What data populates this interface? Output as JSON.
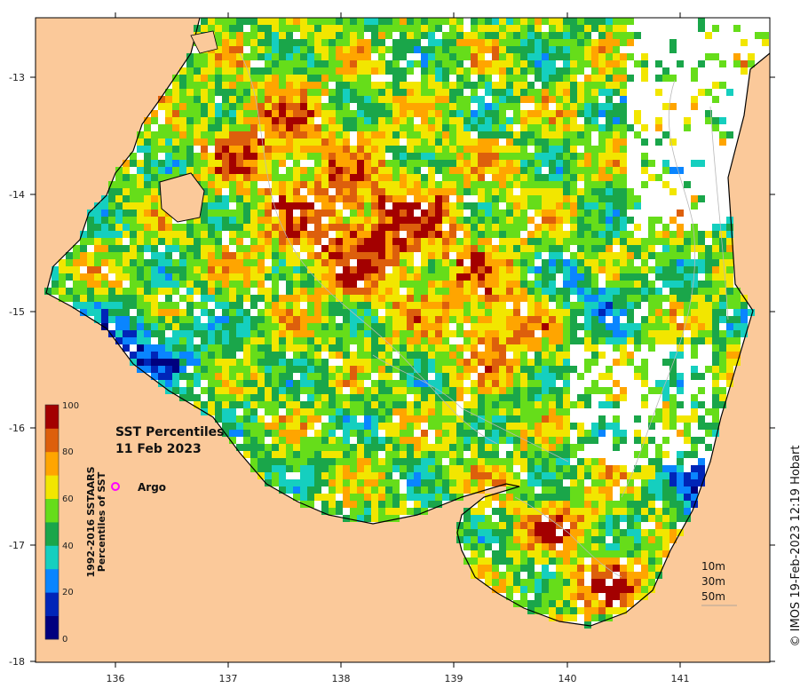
{
  "map": {
    "title_line1": "SST Percentiles",
    "title_line2": "11 Feb 2023",
    "credit": "© IMOS 19-Feb-2023 12:19 Hobart",
    "land_color": "#fbc99a",
    "nodata_color": "#ffffff",
    "lon_ticks": [
      "136",
      "137",
      "138",
      "139",
      "140",
      "141"
    ],
    "lat_ticks": [
      "-13",
      "-14",
      "-15",
      "-16",
      "-17",
      "-18"
    ],
    "colorbar": {
      "title_line1": "1992-2016 SSTAARS",
      "title_line2": "Percentiles of SST",
      "tick_labels": [
        "0",
        "20",
        "40",
        "60",
        "80",
        "100"
      ],
      "colors": [
        "#00007f",
        "#0025b8",
        "#0a85ff",
        "#15cfbf",
        "#1aa64a",
        "#66dd1a",
        "#f2e600",
        "#ffa500",
        "#dd5f0c",
        "#a30000"
      ]
    },
    "depth_legend": [
      "10m",
      "30m",
      "50m"
    ],
    "argo_label": "Argo"
  }
}
